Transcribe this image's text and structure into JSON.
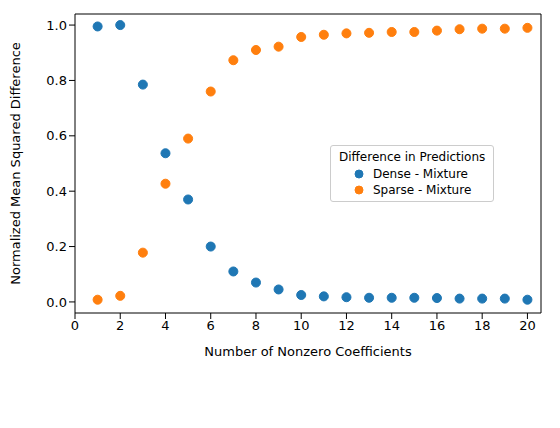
{
  "chart_data": {
    "type": "scatter",
    "x_label": "Number of Nonzero Coefficients",
    "y_label": "Normalized Mean Squared Difference",
    "legend_title": "Difference in Predictions",
    "legend": "center right",
    "grid": false,
    "marker": "circle",
    "x": [
      1,
      2,
      3,
      4,
      5,
      6,
      7,
      8,
      9,
      10,
      11,
      12,
      13,
      14,
      15,
      16,
      17,
      18,
      19,
      20
    ],
    "series": [
      {
        "name": "Dense - Mixture",
        "color": "#1f77b4",
        "values": [
          0.995,
          1.0,
          0.785,
          0.537,
          0.37,
          0.2,
          0.11,
          0.07,
          0.045,
          0.025,
          0.02,
          0.017,
          0.015,
          0.015,
          0.015,
          0.014,
          0.012,
          0.012,
          0.012,
          0.008
        ]
      },
      {
        "name": "Sparse - Mixture",
        "color": "#ff7f0e",
        "values": [
          0.008,
          0.022,
          0.178,
          0.427,
          0.59,
          0.76,
          0.873,
          0.91,
          0.922,
          0.957,
          0.965,
          0.97,
          0.972,
          0.975,
          0.975,
          0.98,
          0.985,
          0.987,
          0.987,
          0.99
        ]
      }
    ],
    "xlim": [
      0,
      20.6
    ],
    "xticks": [
      0,
      2,
      4,
      6,
      8,
      10,
      12,
      14,
      16,
      18,
      20
    ],
    "ylim": [
      -0.04,
      1.04
    ],
    "yticks": [
      {
        "value": 0,
        "label": "0.0"
      },
      {
        "value": 0.2,
        "label": "0.2"
      },
      {
        "value": 0.4,
        "label": "0.4"
      },
      {
        "value": 0.6,
        "label": "0.6"
      },
      {
        "value": 0.8,
        "label": "0.8"
      },
      {
        "value": 1.0,
        "label": "1.0"
      }
    ]
  }
}
